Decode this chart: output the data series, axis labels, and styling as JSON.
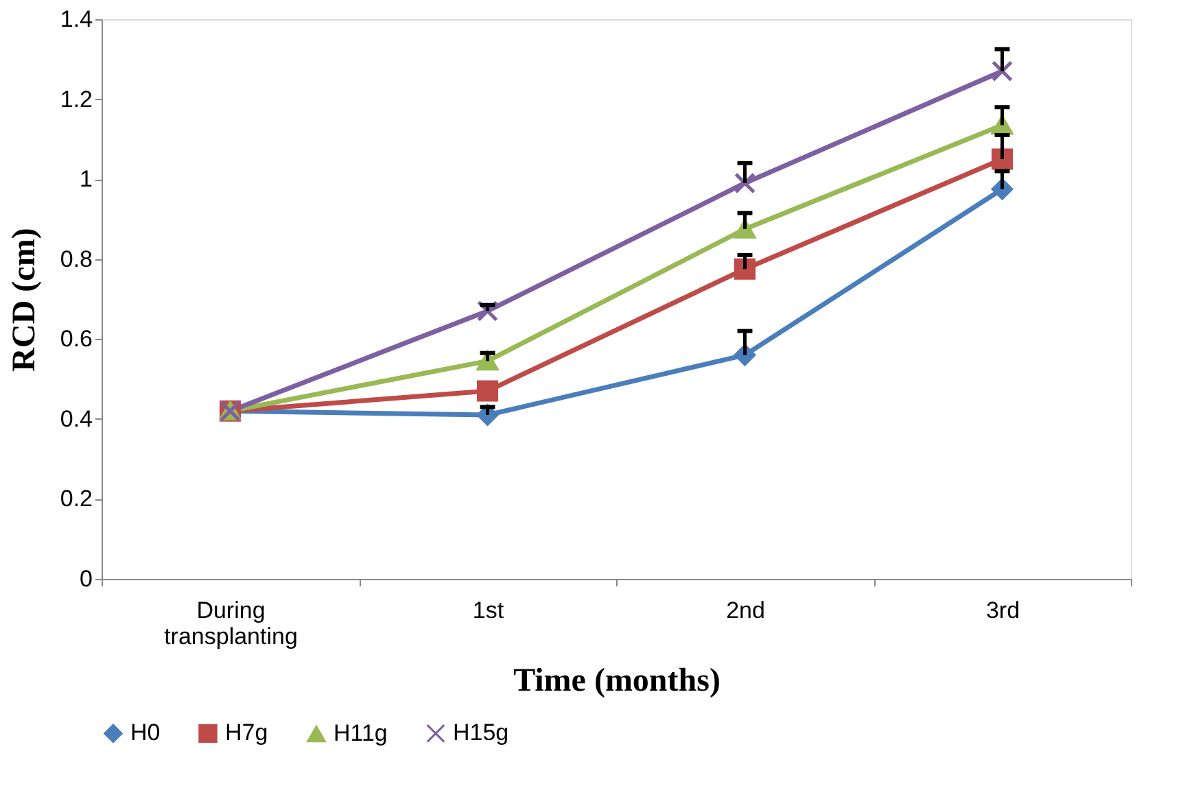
{
  "chart_data": {
    "type": "line",
    "xlabel": "Time (months)",
    "ylabel": "RCD  (cm)",
    "categories": [
      "During transplanting",
      "1st",
      "2nd",
      "3rd"
    ],
    "ylim": [
      0,
      1.4
    ],
    "yticks": [
      0,
      0.2,
      0.4,
      0.6,
      0.8,
      1,
      1.2,
      1.4
    ],
    "grid": false,
    "legend": "bottom",
    "series": [
      {
        "name": "H0",
        "color": "#4a7ebb",
        "marker": "diamond",
        "values": [
          0.42,
          0.41,
          0.56,
          0.975
        ],
        "errors": [
          null,
          [
            0.41,
            0.43
          ],
          [
            0.56,
            0.62
          ],
          [
            0.975,
            1.02
          ]
        ]
      },
      {
        "name": "H7g",
        "color": "#be4b48",
        "marker": "square",
        "values": [
          0.42,
          0.47,
          0.775,
          1.05
        ],
        "errors": [
          null,
          null,
          [
            0.775,
            0.81
          ],
          [
            1.05,
            1.11
          ]
        ]
      },
      {
        "name": "H11g",
        "color": "#98b954",
        "marker": "triangle",
        "values": [
          0.42,
          0.545,
          0.875,
          1.135
        ],
        "errors": [
          null,
          [
            0.545,
            0.565
          ],
          [
            0.875,
            0.915
          ],
          [
            1.135,
            1.18
          ]
        ]
      },
      {
        "name": "H15g",
        "color": "#7d60a0",
        "marker": "cross",
        "values": [
          0.42,
          0.67,
          0.99,
          1.27
        ],
        "errors": [
          null,
          [
            0.67,
            0.685
          ],
          [
            0.99,
            1.04
          ],
          [
            1.27,
            1.325
          ]
        ]
      }
    ]
  }
}
